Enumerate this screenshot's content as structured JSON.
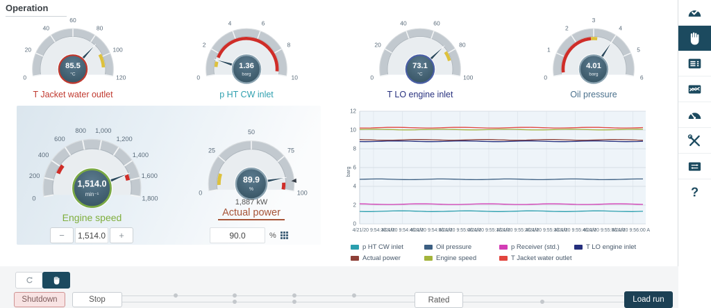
{
  "header": {
    "title": "Operation"
  },
  "gauges": {
    "t_jacket": {
      "label": "T Jacket water outlet",
      "label_color": "#c0392f",
      "value": 85.5,
      "value_text": "85.5",
      "unit": "°C",
      "min": 0,
      "max": 120,
      "ticks": [
        "0",
        "20",
        "40",
        "60",
        "80",
        "100",
        "120"
      ],
      "bands": [
        {
          "from": 97,
          "to": 112,
          "color": "#ddc13d"
        }
      ],
      "ring": "#c0392f"
    },
    "p_ht": {
      "label": "p HT CW inlet",
      "label_color": "#2e9fae",
      "value": 1.36,
      "value_text": "1.36",
      "unit": "barg",
      "min": 0,
      "max": 10,
      "ticks": [
        "0",
        "2",
        "4",
        "6",
        "8",
        "10"
      ],
      "bands": [
        {
          "from": 1.6,
          "to": 9.7,
          "color": "#cf2d28"
        },
        {
          "from": 0.7,
          "to": 1.2,
          "color": "#ddc13d"
        }
      ],
      "ring": "#8aa2b0"
    },
    "t_lo": {
      "label": "T LO engine inlet",
      "label_color": "#27307e",
      "value": 73.1,
      "value_text": "73.1",
      "unit": "°C",
      "min": 0,
      "max": 100,
      "ticks": [
        "0",
        "20",
        "40",
        "60",
        "80",
        "100"
      ],
      "bands": [
        {
          "from": 78,
          "to": 87,
          "color": "#ddc13d"
        }
      ],
      "ring": "#4a5fa5"
    },
    "oil": {
      "label": "Oil pressure",
      "label_color": "#4a708c",
      "value": 4.01,
      "value_text": "4.01",
      "unit": "barg",
      "min": 0,
      "max": 6,
      "ticks": [
        "0",
        "1",
        "2",
        "3",
        "4",
        "5",
        "6"
      ],
      "bands": [
        {
          "from": 0.12,
          "to": 2.85,
          "color": "#cf2d28"
        },
        {
          "from": 2.85,
          "to": 3.2,
          "color": "#ddc13d"
        }
      ],
      "ring": "#8aa2b0"
    },
    "engine_speed": {
      "label": "Engine speed",
      "label_color": "#7fae3d",
      "value": 1514,
      "value_text": "1,514.0",
      "unit": "min⁻¹",
      "min": 0,
      "max": 1800,
      "ticks": [
        "0",
        "200",
        "400",
        "600",
        "800",
        "1,000",
        "1,200",
        "1,400",
        "1,600",
        "1,800"
      ],
      "bands": [
        {
          "from": 300,
          "to": 430,
          "color": "#cf2d28"
        },
        {
          "from": 1515,
          "to": 1600,
          "color": "#cf2d28"
        }
      ],
      "ring": "#79a844",
      "stepper": {
        "minus": "−",
        "value": "1,514.0",
        "plus": "+"
      }
    },
    "actual_power": {
      "label": "Actual power",
      "label_color": "#a65437",
      "value": 89.9,
      "value_text": "89.9",
      "unit": "%",
      "min": 0,
      "max": 100,
      "ticks": [
        "0",
        "25",
        "50",
        "75",
        "100"
      ],
      "bands": [
        {
          "from": 4,
          "to": 14,
          "color": "#ddc13d"
        },
        {
          "from": 94,
          "to": 100,
          "color": "#cf2d28"
        }
      ],
      "ring": "#8aa2b0",
      "marker": 93,
      "kw_text": "1,887 kW",
      "input": {
        "value": "90.0",
        "unit": "%"
      }
    }
  },
  "chart_data": {
    "type": "line",
    "ylabel": "barg",
    "ylim": [
      0,
      12
    ],
    "y_ticks": [
      0,
      2,
      4,
      6,
      8,
      10,
      12
    ],
    "x_labels": [
      "4/21/20 9:54:30 AM",
      "4/21/20 9:54:40 AM",
      "4/21/20 9:54:50 AM",
      "4/21/20 9:55:00 AM",
      "4/21/20 9:55:10 AM",
      "4/21/20 9:55:20 AM",
      "4/21/20 9:55:30 AM",
      "4/21/20 9:55:40 AM",
      "4/21/20 9:55:50 AM",
      "4/21/20 9:56:00 AM"
    ],
    "note": "all series are flat horizontal trend lines over the time window",
    "series": [
      {
        "name": "T Jacket water outlet",
        "color": "#e2453e",
        "value": 10.25
      },
      {
        "name": "Engine speed",
        "color": "#a3b43c",
        "value": 10.05
      },
      {
        "name": "Actual power",
        "color": "#8e4038",
        "value": 8.95
      },
      {
        "name": "T LO engine inlet",
        "color": "#252f7d",
        "value": 8.8
      },
      {
        "name": "Oil pressure",
        "color": "#3c5f82",
        "value": 4.75
      },
      {
        "name": "p Receiver (std.)",
        "color": "#d33db5",
        "value": 2.1
      },
      {
        "name": "p HT CW inlet",
        "color": "#2b9fae",
        "value": 1.35
      }
    ],
    "legend_rows": [
      [
        {
          "label": "p HT CW inlet",
          "color": "#2b9fae"
        },
        {
          "label": "Oil pressure",
          "color": "#3c5f82"
        },
        {
          "label": "p Receiver (std.)",
          "color": "#d33db5"
        },
        {
          "label": "T LO engine inlet",
          "color": "#252f7d"
        }
      ],
      [
        {
          "label": "Actual power",
          "color": "#8e4038"
        },
        {
          "label": "Engine speed",
          "color": "#a3b43c"
        },
        {
          "label": "T Jacket water outlet",
          "color": "#e2453e"
        }
      ]
    ]
  },
  "sidebar": {
    "items": [
      {
        "name": "dashboard-status",
        "icon": "gauge-check",
        "selected": false
      },
      {
        "name": "manual-control",
        "icon": "hand",
        "selected": true
      },
      {
        "name": "parameter-list",
        "icon": "form",
        "selected": false
      },
      {
        "name": "trends",
        "icon": "trend",
        "selected": false
      },
      {
        "name": "gauges",
        "icon": "gauge",
        "selected": false
      },
      {
        "name": "service-tools",
        "icon": "tools",
        "selected": false
      },
      {
        "name": "display-settings",
        "icon": "display",
        "selected": false
      },
      {
        "name": "help",
        "icon": "help",
        "selected": false
      }
    ],
    "accent": "#1c4a5f"
  },
  "footer": {
    "mode_toggle": [
      {
        "name": "auto-mode",
        "icon": "refresh",
        "active": false
      },
      {
        "name": "manual-mode",
        "icon": "hand",
        "active": true
      }
    ],
    "buttons": {
      "shutdown": "Shutdown",
      "stop": "Stop",
      "rated": "Rated",
      "load_run": "Load run"
    }
  }
}
